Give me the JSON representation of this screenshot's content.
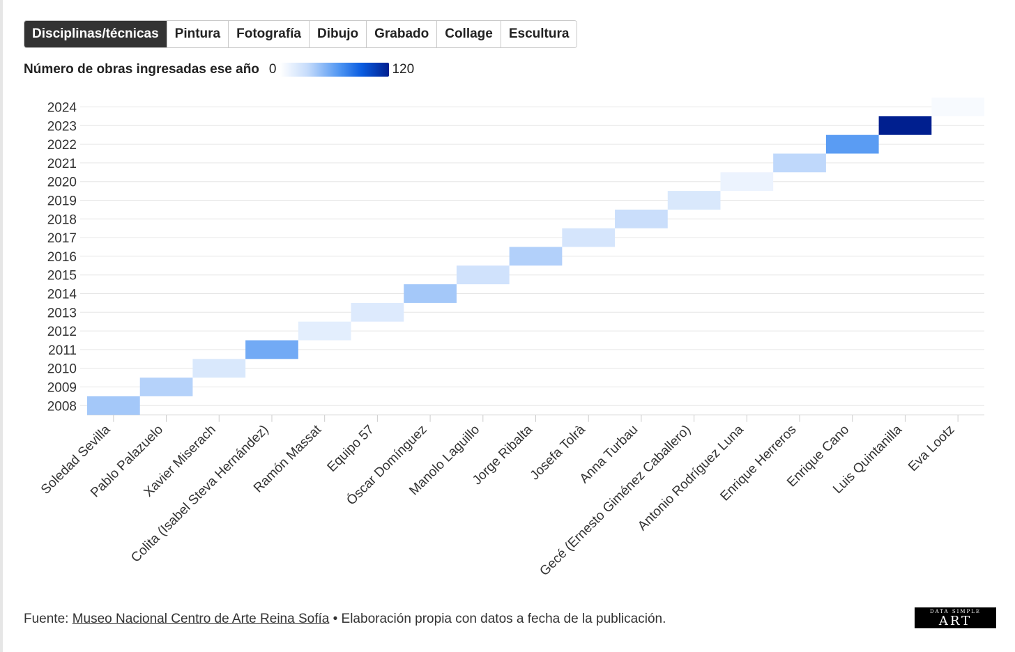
{
  "tabs": [
    {
      "label": "Disciplinas/técnicas",
      "active": true
    },
    {
      "label": "Pintura",
      "active": false
    },
    {
      "label": "Fotografía",
      "active": false
    },
    {
      "label": "Dibujo",
      "active": false
    },
    {
      "label": "Grabado",
      "active": false
    },
    {
      "label": "Collage",
      "active": false
    },
    {
      "label": "Escultura",
      "active": false
    }
  ],
  "legend": {
    "title": "Número de obras ingresadas ese año",
    "min_label": "0",
    "max_label": "120"
  },
  "footer": {
    "prefix": "Fuente: ",
    "link_text": "Museo Nacional Centro de Arte Reina Sofía",
    "suffix": " • Elaboración propia con datos a fecha de la publicación."
  },
  "logo": {
    "small_text": "DATA SIMPLE",
    "big_text": "ART"
  },
  "colors": {
    "low": "#ffffff",
    "high": "#001f8f",
    "grid": "#e6e6e6"
  },
  "chart_data": {
    "type": "heatmap",
    "value_range": [
      0,
      120
    ],
    "x_categories": [
      "Soledad Sevilla",
      "Pablo Palazuelo",
      "Xavier Miserach",
      "Colita (Isabel Steva Hernández)",
      "Ramón Massat",
      "Equipo 57",
      "Óscar Domínguez",
      "Manolo Laguillo",
      "Jorge Ribalta",
      "Josefa Tolrà",
      "Anna Turbau",
      "Gecé (Ernesto Giménez Caballero)",
      "Antonio Rodríguez Luna",
      "Enrique Herreros",
      "Enrique Cano",
      "Luis Quintanilla",
      "Eva Lootz"
    ],
    "y_categories": [
      "2024",
      "2023",
      "2022",
      "2021",
      "2020",
      "2019",
      "2018",
      "2017",
      "2016",
      "2015",
      "2014",
      "2013",
      "2012",
      "2011",
      "2010",
      "2009",
      "2008"
    ],
    "cells": [
      {
        "x": "Soledad Sevilla",
        "y": "2008",
        "value": 40
      },
      {
        "x": "Pablo Palazuelo",
        "y": "2009",
        "value": 35
      },
      {
        "x": "Xavier Miserach",
        "y": "2010",
        "value": 20
      },
      {
        "x": "Colita (Isabel Steva Hernández)",
        "y": "2011",
        "value": 55
      },
      {
        "x": "Ramón Massat",
        "y": "2012",
        "value": 15
      },
      {
        "x": "Equipo 57",
        "y": "2013",
        "value": 18
      },
      {
        "x": "Óscar Domínguez",
        "y": "2014",
        "value": 40
      },
      {
        "x": "Manolo Laguillo",
        "y": "2015",
        "value": 25
      },
      {
        "x": "Jorge Ribalta",
        "y": "2016",
        "value": 36
      },
      {
        "x": "Josefa Tolrà",
        "y": "2017",
        "value": 22
      },
      {
        "x": "Anna Turbau",
        "y": "2018",
        "value": 28
      },
      {
        "x": "Gecé (Ernesto Giménez Caballero)",
        "y": "2019",
        "value": 20
      },
      {
        "x": "Antonio Rodríguez Luna",
        "y": "2020",
        "value": 10
      },
      {
        "x": "Enrique Herreros",
        "y": "2021",
        "value": 32
      },
      {
        "x": "Enrique Cano",
        "y": "2022",
        "value": 62
      },
      {
        "x": "Luis Quintanilla",
        "y": "2023",
        "value": 120
      },
      {
        "x": "Eva Lootz",
        "y": "2024",
        "value": 4
      }
    ]
  }
}
